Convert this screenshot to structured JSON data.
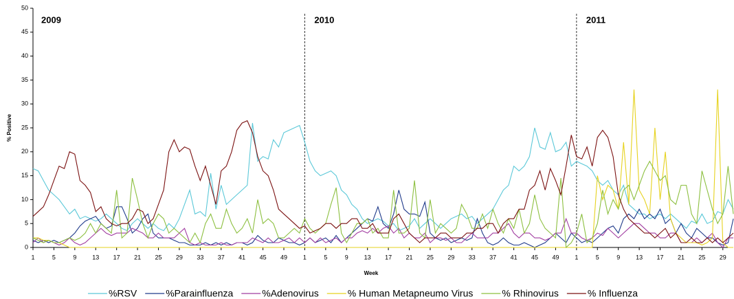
{
  "chart_data": {
    "type": "line",
    "y_label": "% Positive",
    "x_label": "Week",
    "annotations": [
      "2009",
      "2010",
      "2011"
    ],
    "ylim": [
      0,
      50
    ],
    "yticks": [
      0,
      5,
      10,
      15,
      20,
      25,
      30,
      35,
      40,
      45,
      50
    ],
    "categories": [
      1,
      null,
      null,
      null,
      5,
      null,
      null,
      null,
      9,
      null,
      null,
      null,
      13,
      null,
      null,
      null,
      17,
      null,
      null,
      null,
      21,
      null,
      null,
      null,
      25,
      null,
      null,
      null,
      29,
      null,
      null,
      null,
      33,
      null,
      null,
      null,
      37,
      null,
      null,
      null,
      41,
      null,
      null,
      null,
      45,
      null,
      null,
      null,
      49,
      null,
      null,
      null,
      1,
      null,
      null,
      null,
      5,
      null,
      null,
      null,
      9,
      null,
      null,
      null,
      13,
      null,
      null,
      null,
      17,
      null,
      null,
      null,
      21,
      null,
      null,
      null,
      25,
      null,
      null,
      null,
      29,
      null,
      null,
      null,
      33,
      null,
      null,
      null,
      37,
      null,
      null,
      null,
      41,
      null,
      null,
      null,
      45,
      null,
      null,
      null,
      49,
      null,
      null,
      null,
      1,
      null,
      null,
      null,
      5,
      null,
      null,
      null,
      9,
      null,
      null,
      null,
      13,
      null,
      null,
      null,
      17,
      null,
      null,
      null,
      21,
      null,
      null,
      null,
      25,
      null,
      null,
      null,
      29,
      null,
      null
    ],
    "series": [
      {
        "name": "%RSV",
        "color": "#5bc8d8",
        "values": [
          16.5,
          16,
          14,
          12,
          11,
          10,
          8.5,
          7,
          8,
          6,
          6.5,
          6,
          5.5,
          6,
          7,
          6,
          5,
          4,
          3.5,
          5,
          6,
          5,
          4,
          5,
          4,
          3.5,
          5,
          4,
          6,
          9,
          12,
          7,
          7.5,
          6.5,
          15.5,
          8,
          13,
          9,
          10,
          11,
          12,
          13,
          26,
          18,
          19,
          18.5,
          22.5,
          21,
          24,
          24.5,
          25,
          25.5,
          22,
          18,
          16,
          15,
          15.5,
          16,
          15,
          12,
          11,
          9,
          8,
          6,
          5,
          5.5,
          6,
          5.5,
          4.5,
          5,
          3.5,
          4,
          4.5,
          6,
          4,
          5,
          6,
          5,
          4,
          5,
          6,
          6.5,
          7,
          6,
          6.5,
          5,
          6,
          7,
          8,
          10,
          12,
          13,
          17,
          16,
          17,
          19,
          25,
          21,
          20.5,
          24,
          20,
          20.5,
          22,
          17,
          18,
          17.5,
          17,
          16,
          14,
          13,
          14,
          12,
          11,
          13,
          9,
          8,
          7,
          7,
          6,
          6.5,
          7,
          6,
          7,
          6,
          5,
          4,
          5.5,
          5,
          7,
          5,
          5.5,
          7.5,
          7,
          10,
          8
        ]
      },
      {
        "name": "%Parainfluenza",
        "color": "#1f3a8a",
        "values": [
          1.5,
          1,
          1.5,
          1,
          1.5,
          1,
          1.5,
          2,
          3,
          4.5,
          5.5,
          6,
          6.5,
          5,
          4,
          4.5,
          8.5,
          8.5,
          6,
          3,
          4,
          6,
          7,
          3,
          2,
          2,
          2,
          1.5,
          1,
          1,
          0.5,
          0.5,
          0.5,
          1,
          0.5,
          1,
          0.5,
          1,
          0.5,
          1,
          1,
          0.5,
          1,
          2.5,
          1.5,
          1,
          1,
          2,
          1.5,
          1,
          1,
          0.5,
          1,
          2,
          1,
          1.5,
          2,
          1,
          2.5,
          1,
          2,
          3,
          4,
          5,
          6,
          5.5,
          8.5,
          5,
          4,
          7,
          12,
          8,
          7,
          7,
          6.5,
          9.5,
          3,
          2,
          1.5,
          2,
          1,
          1.5,
          2,
          1.5,
          2,
          6,
          3,
          1,
          0.5,
          1,
          2,
          1,
          0.5,
          0.5,
          1,
          0.5,
          0,
          0.5,
          1,
          2,
          3,
          2,
          1,
          3,
          2,
          1,
          1.5,
          1,
          2,
          3,
          4,
          4.5,
          3,
          6,
          7,
          6,
          8,
          6,
          7,
          6,
          8,
          5,
          6,
          3,
          5,
          3,
          2,
          4,
          3,
          2,
          2,
          1,
          0.5,
          1,
          6
        ]
      },
      {
        "name": "%Adenovirus",
        "color": "#a03ca0",
        "values": [
          1,
          2,
          1,
          1.5,
          1,
          0.5,
          1,
          2,
          1,
          0.5,
          1,
          2,
          3,
          4,
          3,
          2.5,
          3,
          3,
          3,
          4,
          3.5,
          3,
          2,
          2,
          3,
          2,
          2,
          2,
          3,
          4,
          1,
          0.5,
          1,
          0.5,
          0.5,
          0.5,
          1,
          0.5,
          0.5,
          1,
          1,
          1,
          2,
          1.5,
          1,
          2,
          1,
          1,
          1.5,
          2,
          1,
          2,
          1,
          2,
          1,
          2,
          1,
          1.5,
          2,
          1,
          2,
          2,
          3,
          3.5,
          3,
          4,
          3,
          4,
          4.5,
          3,
          4,
          2,
          3,
          2,
          2,
          3,
          1,
          2,
          2,
          1.5,
          2,
          1,
          1,
          2,
          3,
          2,
          2,
          2,
          3,
          3,
          4,
          5,
          3,
          2,
          3,
          3,
          2,
          2,
          1.5,
          2,
          3,
          3,
          6,
          3,
          3,
          2,
          1.5,
          2,
          3,
          2.5,
          4,
          3,
          2,
          3,
          4,
          5,
          5,
          4,
          3,
          3,
          2,
          2,
          3,
          3,
          1,
          1,
          1,
          2,
          1,
          2,
          3,
          1,
          0,
          2,
          2
        ]
      },
      {
        "name": "% Human Metapneumo Virus",
        "color": "#e6d21e",
        "values": [
          2,
          2,
          1.5,
          1.5,
          1,
          1,
          0.5,
          0,
          0,
          0,
          0,
          0,
          0,
          0,
          0,
          0,
          0,
          0,
          0,
          0,
          0,
          0,
          0,
          0,
          0,
          0,
          0,
          0,
          0,
          0,
          0,
          0,
          0,
          0,
          0,
          0,
          0,
          0,
          0,
          0,
          0,
          0,
          0,
          0,
          0,
          0,
          0,
          0,
          0,
          0,
          0,
          0,
          0,
          0,
          0,
          0,
          0,
          0,
          0,
          0,
          0,
          0,
          0,
          0,
          0,
          0,
          0,
          0,
          0,
          0,
          0,
          0,
          0,
          0,
          0,
          0,
          0,
          0,
          0,
          0,
          0,
          0,
          0,
          0,
          0,
          0,
          0,
          0,
          0,
          0,
          0,
          0,
          0,
          0,
          0,
          0,
          0,
          0,
          0,
          0,
          0,
          0,
          0,
          0,
          0,
          0,
          0,
          0,
          15,
          10,
          13,
          12,
          8,
          22,
          9,
          33,
          12,
          10,
          7,
          25,
          10,
          20,
          6,
          3,
          2,
          1,
          1,
          1,
          0.5,
          1,
          2,
          33,
          1,
          0,
          0
        ]
      },
      {
        "name": "% Rhinovirus",
        "color": "#8cbf3f",
        "values": [
          2,
          1.5,
          1,
          1.5,
          1,
          1,
          1.5,
          2,
          1.5,
          2,
          3,
          5,
          3,
          5,
          4,
          3,
          12,
          2,
          3,
          14.5,
          10,
          5,
          2,
          5,
          7,
          6,
          3,
          4,
          3,
          2,
          1,
          3,
          1,
          5,
          7,
          4,
          4,
          8,
          5,
          3,
          4,
          6,
          3,
          10,
          5,
          6,
          5,
          2,
          2,
          3,
          4,
          3,
          6,
          4,
          3,
          4,
          5,
          9,
          12.5,
          3,
          1,
          3,
          5,
          5,
          6,
          3,
          4,
          2,
          2,
          12,
          3,
          3,
          4,
          14,
          3,
          2,
          10,
          3,
          5,
          4,
          3,
          4,
          9,
          7,
          4,
          4,
          7,
          4,
          8,
          5,
          3,
          6,
          4,
          8,
          3,
          5,
          11,
          6,
          4,
          3,
          2,
          14.5,
          0,
          1,
          3,
          7,
          1,
          2,
          5,
          12,
          7,
          10,
          8,
          12,
          13,
          10,
          13,
          16,
          18,
          16,
          14,
          15,
          10,
          9,
          13,
          13,
          7,
          5,
          16,
          12,
          8,
          5,
          7,
          17,
          7
        ]
      },
      {
        "name": "% Influenza",
        "color": "#7a1010",
        "values": [
          6.5,
          7.5,
          8.5,
          11,
          14,
          17,
          16.5,
          20,
          19.5,
          14,
          13,
          11.5,
          7.5,
          8.5,
          6,
          5,
          4.5,
          5,
          5,
          6,
          8,
          7.5,
          5,
          6,
          9,
          12,
          20,
          22.5,
          20,
          21,
          20.5,
          17,
          14,
          17,
          13,
          9,
          16,
          17,
          20,
          24.5,
          26,
          26.5,
          24,
          19,
          16,
          15,
          12,
          8,
          7,
          6,
          5,
          4,
          4.5,
          3,
          3.5,
          4,
          5,
          5,
          4,
          5,
          5,
          6,
          6,
          4,
          4,
          5,
          3,
          3,
          3,
          6,
          7,
          5,
          3,
          2,
          1,
          2,
          2,
          2,
          3,
          3,
          2,
          2,
          2,
          3,
          3,
          4,
          4,
          5,
          5,
          3,
          5,
          6,
          6,
          8,
          8,
          12,
          13,
          16,
          12,
          16.5,
          14,
          11,
          17,
          23.5,
          19,
          18.5,
          21,
          17,
          23,
          24.5,
          23,
          19,
          11,
          8,
          6,
          5,
          4,
          3,
          3,
          2,
          3,
          4,
          2,
          3,
          1,
          1,
          2,
          1,
          1,
          2,
          1,
          2,
          1,
          2,
          3
        ]
      }
    ]
  }
}
